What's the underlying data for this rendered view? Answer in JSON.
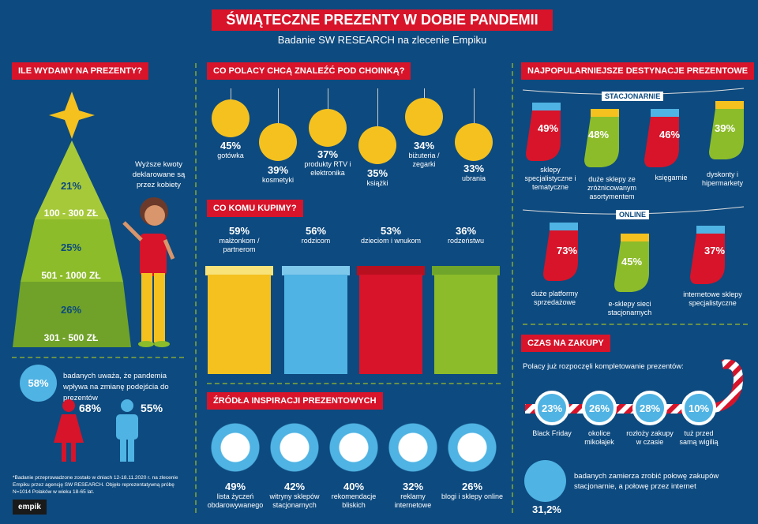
{
  "title": "ŚWIĄTECZNE PREZENTY W DOBIE PANDEMII",
  "subtitle": "Badanie SW RESEARCH na zlecenie Empiku",
  "spend": {
    "header": "ILE WYDAMY NA PREZENTY?",
    "tiers": [
      {
        "pct": "21%",
        "range": "100 - 300 ZŁ"
      },
      {
        "pct": "25%",
        "range": "501 - 1000 ZŁ"
      },
      {
        "pct": "26%",
        "range": "301 - 500 ZŁ"
      }
    ],
    "note": "Wyższe kwoty deklarowane są przez kobiety"
  },
  "pandemic": {
    "pct": "58%",
    "text": "badanych uważa, że pandemia wpływa na zmianę podejścia do prezentów",
    "women": "68%",
    "men": "55%"
  },
  "footnote": "*Badanie przeprowadzone zostało w dniach 12-18.11.2020 r. na zlecenie Empiku przez agencję SW RESEARCH. Objęło reprezentatywną próbę N=1014 Polaków w wieku 18-65 lat.",
  "logo": "empik",
  "wish": {
    "header": "CO POLACY CHCĄ ZNALEŹĆ POD CHOINKĄ?",
    "items": [
      {
        "pct": "45%",
        "label": "gotówka",
        "icon": "cash-icon"
      },
      {
        "pct": "39%",
        "label": "kosmetyki",
        "icon": "cosmetics-icon"
      },
      {
        "pct": "37%",
        "label": "produkty RTV i elektronika",
        "icon": "monitor-icon"
      },
      {
        "pct": "35%",
        "label": "książki",
        "icon": "book-icon"
      },
      {
        "pct": "34%",
        "label": "biżuteria / zegarki",
        "icon": "diamond-icon"
      },
      {
        "pct": "33%",
        "label": "ubrania",
        "icon": "dress-icon"
      }
    ]
  },
  "whom": {
    "header": "CO KOMU KUPIMY?",
    "items": [
      {
        "pct": "59%",
        "label": "małżonkom / partnerom"
      },
      {
        "pct": "56%",
        "label": "rodzicom"
      },
      {
        "pct": "53%",
        "label": "dzieciom i wnukom"
      },
      {
        "pct": "36%",
        "label": "rodzeństwu"
      }
    ],
    "colors": [
      "#f4c11f",
      "#4fb3e3",
      "#d7142a",
      "#8cbc2a"
    ]
  },
  "inspiration": {
    "header": "ŹRÓDŁA INSPIRACJI PREZENTOWYCH",
    "items": [
      {
        "pct": "49%",
        "label": "lista życzeń obdarowywanego",
        "icon": "wishlist-icon"
      },
      {
        "pct": "42%",
        "label": "witryny sklepów stacjonarnych",
        "icon": "storefront-icon"
      },
      {
        "pct": "40%",
        "label": "rekomendacje bliskich",
        "icon": "chat-icon"
      },
      {
        "pct": "32%",
        "label": "reklamy internetowe",
        "icon": "laptop-icon"
      },
      {
        "pct": "26%",
        "label": "blogi i sklepy online",
        "icon": "basket-icon"
      }
    ]
  },
  "destinations": {
    "header": "NAJPOPULARNIEJSZE DESTYNACJE PREZENTOWE",
    "stationary_label": "STACJONARNIE",
    "online_label": "ONLINE",
    "stationary": [
      {
        "pct": "49%",
        "label": "sklepy specjalistyczne i tematyczne"
      },
      {
        "pct": "48%",
        "label": "duże sklepy ze zróżnicowanym asortymentem"
      },
      {
        "pct": "46%",
        "label": "księgarnie"
      },
      {
        "pct": "39%",
        "label": "dyskonty i hipermarkety"
      }
    ],
    "online": [
      {
        "pct": "73%",
        "label": "duże platformy sprzedażowe"
      },
      {
        "pct": "45%",
        "label": "e-sklepy sieci stacjonarnych"
      },
      {
        "pct": "37%",
        "label": "internetowe sklepy specjalistyczne"
      }
    ]
  },
  "timing": {
    "header": "CZAS NA ZAKUPY",
    "intro": "Polacy już rozpoczęli kompletowanie prezentów:",
    "items": [
      {
        "pct": "23%",
        "label": "Black Friday"
      },
      {
        "pct": "26%",
        "label": "okolice mikołajek"
      },
      {
        "pct": "28%",
        "label": "rozłoży zakupy w czasie"
      },
      {
        "pct": "10%",
        "label": "tuż przed samą wigilią"
      }
    ],
    "split_pct": "31,2%",
    "split_text": "badanych zamierza zrobić połowę zakupów stacjonarnie, a połowę przez internet"
  }
}
